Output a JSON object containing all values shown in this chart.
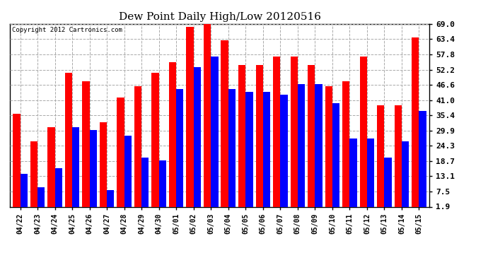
{
  "title": "Dew Point Daily High/Low 20120516",
  "copyright": "Copyright 2012 Cartronics.com",
  "dates": [
    "04/22",
    "04/23",
    "04/24",
    "04/25",
    "04/26",
    "04/27",
    "04/28",
    "04/29",
    "04/30",
    "05/01",
    "05/02",
    "05/03",
    "05/04",
    "05/05",
    "05/06",
    "05/07",
    "05/08",
    "05/09",
    "05/10",
    "05/11",
    "05/12",
    "05/13",
    "05/14",
    "05/15"
  ],
  "highs": [
    36,
    26,
    31,
    51,
    48,
    33,
    42,
    46,
    51,
    55,
    68,
    69,
    63,
    54,
    54,
    57,
    57,
    54,
    46,
    48,
    57,
    39,
    39,
    64
  ],
  "lows": [
    14,
    9,
    16,
    31,
    30,
    8,
    28,
    20,
    19,
    45,
    53,
    57,
    45,
    44,
    44,
    43,
    47,
    47,
    40,
    27,
    27,
    20,
    26,
    37
  ],
  "high_color": "#ff0000",
  "low_color": "#0000ff",
  "bg_color": "#ffffff",
  "grid_color": "#aaaaaa",
  "yticks": [
    1.9,
    7.5,
    13.1,
    18.7,
    24.3,
    29.9,
    35.4,
    41.0,
    46.6,
    52.2,
    57.8,
    63.4,
    69.0
  ],
  "ymin": 1.9,
  "ymax": 69.0,
  "bar_width": 0.42
}
